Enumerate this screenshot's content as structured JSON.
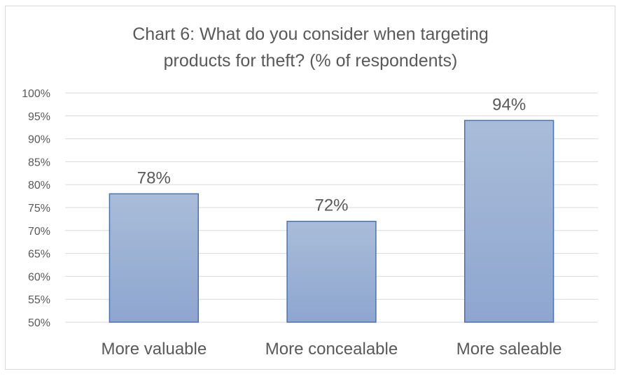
{
  "chart_data": {
    "type": "bar",
    "title_lines": [
      "Chart 6: What do you consider when targeting",
      "products for theft? (% of respondents)"
    ],
    "categories": [
      "More valuable",
      "More concealable",
      "More saleable"
    ],
    "values": [
      78,
      72,
      94
    ],
    "data_labels": [
      "78%",
      "72%",
      "94%"
    ],
    "ylim": [
      50,
      100
    ],
    "yticks": [
      "50%",
      "55%",
      "60%",
      "65%",
      "70%",
      "75%",
      "80%",
      "85%",
      "90%",
      "95%",
      "100%"
    ],
    "grid": true,
    "legend": "none",
    "colors": {
      "bar_top": "#a9bcd9",
      "bar_bottom": "#8ea6cf",
      "bar_border": "#4a72b0",
      "grid": "#d9d9d9",
      "text": "#595959"
    }
  }
}
